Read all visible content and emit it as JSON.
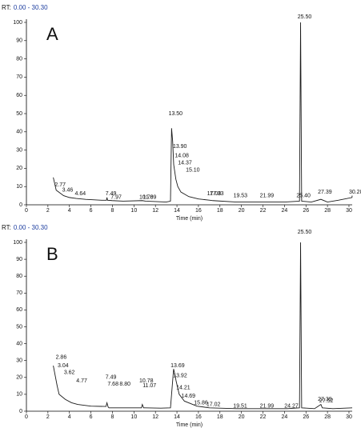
{
  "chart_data": [
    {
      "type": "line",
      "header_label": "RT:",
      "header_range": "0.00 - 30.30",
      "panel_label": "A",
      "xlabel": "Time (min)",
      "color": "#1a1a1a",
      "x": [
        2.5,
        2.77,
        3.0,
        3.46,
        4.0,
        4.64,
        5.5,
        7.0,
        7.45,
        7.49,
        7.55,
        7.97,
        9.0,
        10.78,
        11.09,
        12.0,
        13.0,
        13.4,
        13.5,
        13.6,
        13.7,
        13.9,
        14.08,
        14.37,
        15.1,
        16.0,
        17.08,
        17.33,
        19.53,
        21.99,
        24.0,
        25.4,
        25.5,
        25.6,
        26.5,
        27.39,
        28.0,
        29.0,
        30.28,
        30.3
      ],
      "values": [
        15,
        8,
        7,
        5,
        4,
        3.5,
        3,
        2.5,
        2.5,
        4,
        2.5,
        2.3,
        2,
        2.3,
        2,
        1.8,
        1.5,
        2,
        42,
        35,
        22,
        14,
        10,
        7,
        4.5,
        3.2,
        2.5,
        2.3,
        1.5,
        1.5,
        1.5,
        2,
        100,
        2,
        1.5,
        3,
        1.5,
        2.5,
        4,
        5
      ],
      "xlim": [
        0,
        30.3
      ],
      "ylim": [
        0,
        100
      ],
      "xticks": [
        0,
        2,
        4,
        6,
        8,
        10,
        12,
        14,
        16,
        18,
        20,
        22,
        24,
        26,
        28,
        30
      ],
      "yticks": [
        0,
        10,
        20,
        30,
        40,
        50,
        60,
        70,
        80,
        90,
        100
      ],
      "annotations": {
        "x": [
          2.77,
          3.46,
          4.64,
          7.49,
          7.97,
          10.78,
          11.09,
          13.5,
          13.9,
          14.08,
          14.37,
          15.1,
          17.08,
          17.33,
          19.53,
          21.99,
          25.4,
          25.5,
          27.39,
          30.28
        ],
        "y": [
          11,
          8,
          6,
          6,
          4,
          4,
          4,
          50,
          32,
          27,
          23,
          19,
          6,
          6,
          5,
          5,
          5,
          103,
          7,
          7
        ],
        "labels": [
          "2.77",
          "3.46",
          "4.64",
          "7.49",
          "7.97",
          "10.78",
          "11.09",
          "13.50",
          "13.90",
          "14.08",
          "14.37",
          "15.10",
          "17.08",
          "17.33",
          "19.53",
          "21.99",
          "25.40",
          "25.50",
          "27.39",
          "30.28"
        ]
      }
    },
    {
      "type": "line",
      "header_label": "RT:",
      "header_range": "0.00 - 30.30",
      "panel_label": "B",
      "xlabel": "Time (min)",
      "color": "#1a1a1a",
      "x": [
        2.5,
        2.86,
        3.04,
        3.62,
        4.2,
        4.77,
        6.0,
        7.4,
        7.49,
        7.6,
        7.68,
        8.8,
        10.7,
        10.78,
        10.9,
        11.07,
        12.5,
        13.4,
        13.69,
        13.8,
        13.92,
        14.21,
        14.69,
        15.86,
        17.02,
        19.51,
        21.99,
        24.27,
        25.4,
        25.5,
        25.6,
        26.8,
        27.39,
        27.52,
        28.5,
        30.3
      ],
      "values": [
        27,
        15,
        10,
        7,
        5,
        4,
        3,
        2.8,
        5,
        2.5,
        2,
        2,
        2,
        4,
        2,
        2,
        1.8,
        2,
        25,
        22,
        18,
        10,
        6,
        3,
        2,
        1.5,
        1.5,
        1.5,
        2,
        100,
        2,
        1.5,
        4,
        2,
        1.5,
        2
      ],
      "xlim": [
        0,
        30.3
      ],
      "ylim": [
        0,
        100
      ],
      "xticks": [
        0,
        2,
        4,
        6,
        8,
        10,
        12,
        14,
        16,
        18,
        20,
        22,
        24,
        26,
        28,
        30
      ],
      "yticks": [
        0,
        10,
        20,
        30,
        40,
        50,
        60,
        70,
        80,
        90,
        100
      ],
      "annotations": {
        "x": [
          2.86,
          3.04,
          3.62,
          4.77,
          7.49,
          7.68,
          8.8,
          10.78,
          11.07,
          13.69,
          13.92,
          14.21,
          14.69,
          15.86,
          17.02,
          19.51,
          21.99,
          24.27,
          25.5,
          27.39,
          27.52
        ],
        "y": [
          32,
          27,
          23,
          18,
          20,
          16,
          16,
          18,
          15,
          27,
          21,
          14,
          9,
          5,
          4,
          3,
          3,
          3,
          106,
          7,
          6
        ],
        "labels": [
          "2.86",
          "3.04",
          "3.62",
          "4.77",
          "7.49",
          "7.68",
          "8.80",
          "10.78",
          "11.07",
          "13.69",
          "13.92",
          "14.21",
          "14.69",
          "15.86",
          "17.02",
          "19.51",
          "21.99",
          "24.27",
          "25.50",
          "27.39",
          "27.52"
        ]
      }
    }
  ]
}
